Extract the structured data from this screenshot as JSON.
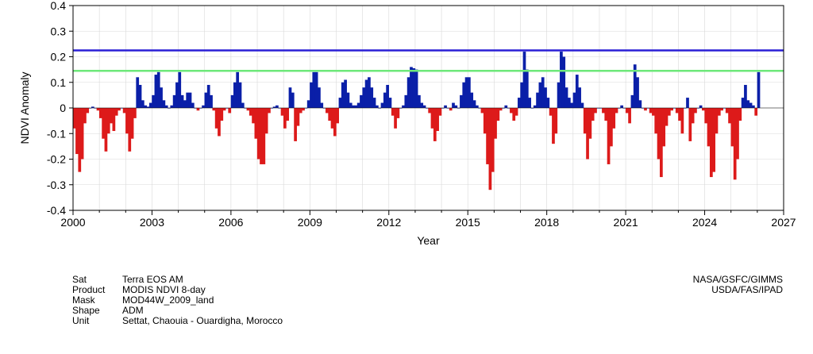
{
  "chart_data": {
    "type": "bar",
    "title": "",
    "xlabel": "Year",
    "ylabel": "NDVI Anomaly",
    "xlim": [
      2000,
      2027
    ],
    "ylim": [
      -0.4,
      0.4
    ],
    "x_ticks": [
      2000,
      2003,
      2006,
      2009,
      2012,
      2015,
      2018,
      2021,
      2024,
      2027
    ],
    "y_ticks": [
      -0.4,
      -0.3,
      -0.2,
      -0.1,
      0,
      0.1,
      0.2,
      0.3,
      0.4
    ],
    "y_tick_labels": [
      "-0.4",
      "-0.3",
      "-0.2",
      "-0.1",
      "0",
      "0.1",
      "0.2",
      "0.3",
      "0.4"
    ],
    "grid": true,
    "reference_lines": [
      {
        "value": 0.225,
        "color": "#2a1fd6"
      },
      {
        "value": 0.145,
        "color": "#6ee87a"
      }
    ],
    "positive_color": "#0a1fa8",
    "negative_color": "#dd1a1a",
    "series": [
      {
        "name": "NDVI anomaly (8-day)",
        "x": [
          2000.0,
          2000.1,
          2000.2,
          2000.3,
          2000.4,
          2000.5,
          2000.6,
          2000.7,
          2000.8,
          2000.9,
          2001.0,
          2001.1,
          2001.2,
          2001.3,
          2001.4,
          2001.5,
          2001.6,
          2001.7,
          2001.8,
          2001.9,
          2002.0,
          2002.1,
          2002.2,
          2002.3,
          2002.4,
          2002.5,
          2002.6,
          2002.7,
          2002.8,
          2002.9,
          2003.0,
          2003.1,
          2003.2,
          2003.3,
          2003.4,
          2003.5,
          2003.6,
          2003.7,
          2003.8,
          2003.9,
          2004.0,
          2004.1,
          2004.2,
          2004.3,
          2004.4,
          2004.5,
          2004.6,
          2004.7,
          2004.8,
          2004.9,
          2005.0,
          2005.1,
          2005.2,
          2005.3,
          2005.4,
          2005.5,
          2005.6,
          2005.7,
          2005.8,
          2005.9,
          2006.0,
          2006.1,
          2006.2,
          2006.3,
          2006.4,
          2006.5,
          2006.6,
          2006.7,
          2006.8,
          2006.9,
          2007.0,
          2007.1,
          2007.2,
          2007.3,
          2007.4,
          2007.5,
          2007.6,
          2007.7,
          2007.8,
          2007.9,
          2008.0,
          2008.1,
          2008.2,
          2008.3,
          2008.4,
          2008.5,
          2008.6,
          2008.7,
          2008.8,
          2008.9,
          2009.0,
          2009.1,
          2009.2,
          2009.3,
          2009.4,
          2009.5,
          2009.6,
          2009.7,
          2009.8,
          2009.9,
          2010.0,
          2010.1,
          2010.2,
          2010.3,
          2010.4,
          2010.5,
          2010.6,
          2010.7,
          2010.8,
          2010.9,
          2011.0,
          2011.1,
          2011.2,
          2011.3,
          2011.4,
          2011.5,
          2011.6,
          2011.7,
          2011.8,
          2011.9,
          2012.0,
          2012.1,
          2012.2,
          2012.3,
          2012.4,
          2012.5,
          2012.6,
          2012.7,
          2012.8,
          2012.9,
          2013.0,
          2013.1,
          2013.2,
          2013.3,
          2013.4,
          2013.5,
          2013.6,
          2013.7,
          2013.8,
          2013.9,
          2014.0,
          2014.1,
          2014.2,
          2014.3,
          2014.4,
          2014.5,
          2014.6,
          2014.7,
          2014.8,
          2014.9,
          2015.0,
          2015.1,
          2015.2,
          2015.3,
          2015.4,
          2015.5,
          2015.6,
          2015.7,
          2015.8,
          2015.9,
          2016.0,
          2016.1,
          2016.2,
          2016.3,
          2016.4,
          2016.5,
          2016.6,
          2016.7,
          2016.8,
          2016.9,
          2017.0,
          2017.1,
          2017.2,
          2017.3,
          2017.4,
          2017.5,
          2017.6,
          2017.7,
          2017.8,
          2017.9,
          2018.0,
          2018.1,
          2018.2,
          2018.3,
          2018.4,
          2018.5,
          2018.6,
          2018.7,
          2018.8,
          2018.9,
          2019.0,
          2019.1,
          2019.2,
          2019.3,
          2019.4,
          2019.5,
          2019.6,
          2019.7,
          2019.8,
          2019.9,
          2020.0,
          2020.1,
          2020.2,
          2020.3,
          2020.4,
          2020.5,
          2020.6,
          2020.7,
          2020.8,
          2020.9,
          2021.0,
          2021.1,
          2021.2,
          2021.3,
          2021.4,
          2021.5,
          2021.6,
          2021.7,
          2021.8,
          2021.9,
          2022.0,
          2022.1,
          2022.2,
          2022.3,
          2022.4,
          2022.5,
          2022.6,
          2022.7,
          2022.8,
          2022.9,
          2023.0,
          2023.1,
          2023.2,
          2023.3,
          2023.4,
          2023.5,
          2023.6,
          2023.7,
          2023.8,
          2023.9,
          2024.0,
          2024.1,
          2024.2,
          2024.3,
          2024.4,
          2024.5,
          2024.6,
          2024.7,
          2024.8,
          2024.9,
          2025.0,
          2025.1,
          2025.2,
          2025.3,
          2025.4,
          2025.5,
          2025.6,
          2025.7,
          2025.8,
          2025.9,
          2026.0
        ],
        "values": [
          -0.08,
          -0.18,
          -0.25,
          -0.2,
          -0.06,
          -0.02,
          0.0,
          0.005,
          0.0,
          -0.01,
          -0.04,
          -0.12,
          -0.17,
          -0.1,
          -0.06,
          -0.09,
          -0.03,
          -0.01,
          0.0,
          -0.02,
          -0.1,
          -0.17,
          -0.12,
          -0.04,
          0.12,
          0.09,
          0.03,
          0.01,
          0.005,
          0.02,
          0.05,
          0.13,
          0.14,
          0.08,
          0.03,
          0.01,
          0.0,
          0.01,
          0.05,
          0.1,
          0.14,
          0.05,
          0.03,
          0.06,
          0.06,
          0.02,
          0.0,
          -0.01,
          0.0,
          0.01,
          0.06,
          0.09,
          0.05,
          -0.01,
          -0.08,
          -0.11,
          -0.05,
          -0.01,
          0.0,
          -0.02,
          0.05,
          0.1,
          0.14,
          0.1,
          0.02,
          0.0,
          -0.01,
          -0.03,
          -0.06,
          -0.12,
          -0.2,
          -0.22,
          -0.22,
          -0.1,
          -0.02,
          0.0,
          0.005,
          0.01,
          0.0,
          -0.03,
          -0.08,
          -0.05,
          0.08,
          0.06,
          -0.13,
          -0.07,
          -0.02,
          -0.01,
          0.0,
          0.03,
          0.1,
          0.14,
          0.14,
          0.08,
          0.02,
          0.0,
          -0.02,
          -0.05,
          -0.08,
          -0.11,
          -0.06,
          0.04,
          0.1,
          0.11,
          0.06,
          0.02,
          0.01,
          0.01,
          0.02,
          0.05,
          0.08,
          0.11,
          0.12,
          0.08,
          0.04,
          0.01,
          0.0,
          0.02,
          0.06,
          0.09,
          0.04,
          -0.03,
          -0.08,
          -0.04,
          0.0,
          0.01,
          0.05,
          0.12,
          0.16,
          0.155,
          0.15,
          0.05,
          0.02,
          0.01,
          0.0,
          -0.02,
          -0.08,
          -0.13,
          -0.09,
          -0.03,
          0.0,
          0.01,
          0.0,
          -0.01,
          0.02,
          0.01,
          0.0,
          0.05,
          0.1,
          0.12,
          0.12,
          0.06,
          0.03,
          0.01,
          0.0,
          -0.02,
          -0.1,
          -0.22,
          -0.32,
          -0.25,
          -0.12,
          -0.05,
          -0.01,
          0.0,
          0.01,
          0.0,
          -0.02,
          -0.05,
          -0.03,
          0.04,
          0.1,
          0.22,
          0.15,
          0.04,
          0.0,
          0.01,
          0.06,
          0.1,
          0.12,
          0.08,
          0.04,
          -0.03,
          -0.14,
          -0.1,
          0.1,
          0.22,
          0.2,
          0.08,
          0.04,
          0.02,
          0.06,
          0.13,
          0.08,
          0.02,
          -0.1,
          -0.2,
          -0.12,
          -0.05,
          -0.02,
          0.0,
          0.0,
          -0.02,
          -0.05,
          -0.22,
          -0.15,
          -0.08,
          -0.02,
          0.0,
          0.01,
          0.0,
          -0.02,
          -0.06,
          0.05,
          0.17,
          0.12,
          0.03,
          0.0,
          -0.01,
          0.0,
          -0.02,
          -0.03,
          -0.1,
          -0.2,
          -0.27,
          -0.15,
          -0.07,
          -0.03,
          -0.01,
          0.0,
          -0.02,
          -0.05,
          -0.1,
          0.0,
          0.04,
          -0.13,
          -0.06,
          -0.02,
          0.0,
          0.01,
          -0.01,
          -0.06,
          -0.15,
          -0.27,
          -0.25,
          -0.1,
          -0.03,
          -0.01,
          0.0,
          -0.02,
          -0.06,
          -0.15,
          -0.28,
          -0.2,
          -0.05,
          0.04,
          0.09,
          0.03,
          0.02,
          0.01,
          -0.03,
          0.14
        ]
      }
    ]
  },
  "metadata": {
    "keys": [
      "Sat",
      "Product",
      "Mask",
      "Shape",
      "Unit"
    ],
    "values": [
      "Terra EOS AM",
      "MODIS NDVI 8-day",
      "MOD44W_2009_land",
      "ADM",
      "Settat, Chaouia - Ouardigha, Morocco"
    ]
  },
  "credits": [
    "NASA/GSFC/GIMMS",
    "USDA/FAS/IPAD"
  ]
}
